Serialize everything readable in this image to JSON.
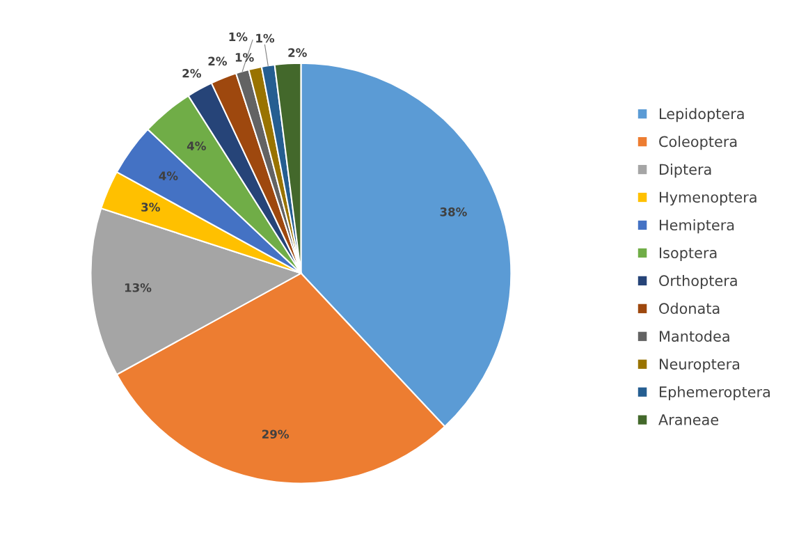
{
  "chart_data": {
    "type": "pie",
    "categories": [
      "Lepidoptera",
      "Coleoptera",
      "Diptera",
      "Hymenoptera",
      "Hemiptera",
      "Isoptera",
      "Orthoptera",
      "Odonata",
      "Mantodea",
      "Neuroptera",
      "Ephemeroptera",
      "Araneae"
    ],
    "values": [
      38,
      29,
      13,
      3,
      4,
      4,
      2,
      2,
      1,
      1,
      1,
      2
    ],
    "value_labels": [
      "38%",
      "29%",
      "13%",
      "3%",
      "4%",
      "4%",
      "2%",
      "2%",
      "1%",
      "1%",
      "1%",
      "2%"
    ],
    "colors": [
      "#5b9bd5",
      "#ed7d31",
      "#a5a5a5",
      "#ffc000",
      "#4472c4",
      "#70ad47",
      "#264478",
      "#9e480e",
      "#636363",
      "#997300",
      "#255e91",
      "#43682b"
    ],
    "legend": "right"
  }
}
